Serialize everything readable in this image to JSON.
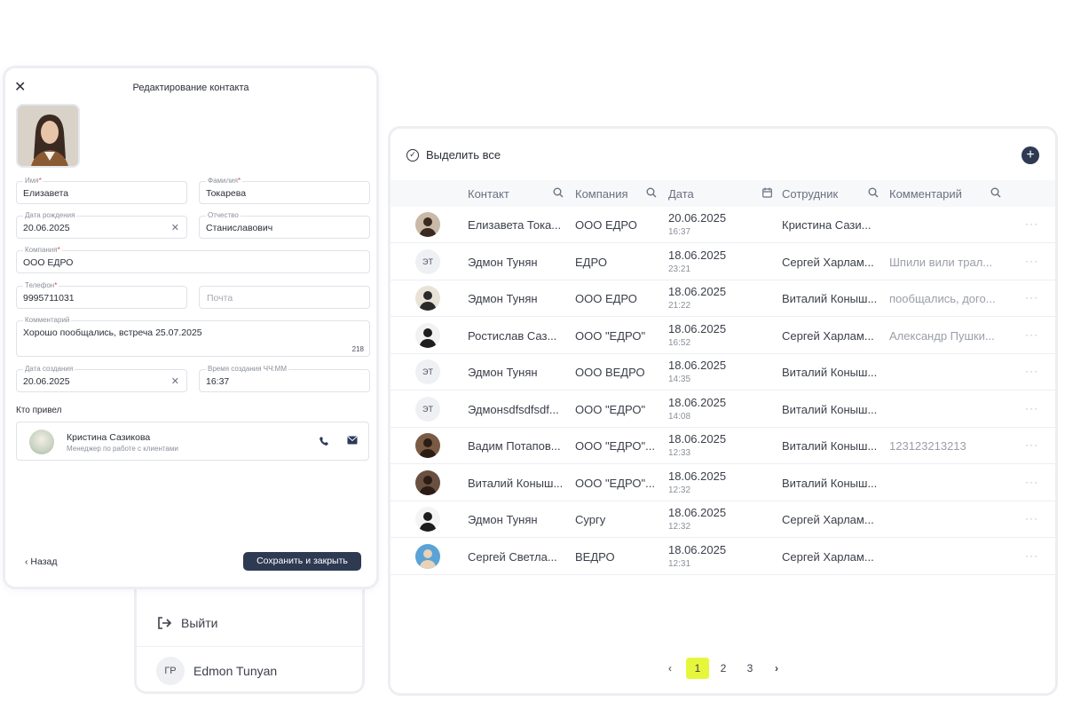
{
  "menu": {
    "logout_label": "Выйти",
    "user_initials": "ГР",
    "user_name": "Edmon Tunyan"
  },
  "modal": {
    "title": "Редактирование контакта",
    "close_icon": "close-icon",
    "fields": {
      "first_name": {
        "label": "Имя",
        "value": "Елизавета"
      },
      "last_name": {
        "label": "Фамилия",
        "value": "Токарева"
      },
      "birth_date": {
        "label": "Дата рождения",
        "value": "20.06.2025"
      },
      "patronymic": {
        "label": "Отчество",
        "value": "Станиславович"
      },
      "company": {
        "label": "Компания",
        "value": "ООО ЕДРО"
      },
      "phone": {
        "label": "Телефон",
        "value": "9995711031"
      },
      "email": {
        "placeholder": "Почта"
      },
      "comment": {
        "label": "Комментарий",
        "value": "Хорошо пообщались, встреча 25.07.2025",
        "counter": "218"
      },
      "created_date": {
        "label": "Дата создания",
        "value": "20.06.2025"
      },
      "created_time": {
        "label": "Время создания ЧЧ:ММ",
        "value": "16:37"
      }
    },
    "referrer": {
      "section_label": "Кто привел",
      "name": "Кристина Сазикова",
      "role": "Менеджер по работе с клиентами"
    },
    "back_label": "Назад",
    "save_label": "Сохранить и закрыть"
  },
  "table": {
    "select_all_label": "Выделить все",
    "columns": [
      "Контакт",
      "Компания",
      "Дата",
      "Сотрудник",
      "Комментарий"
    ],
    "rows": [
      {
        "avatar": "photo",
        "initials": "",
        "contact": "Елизавета Тока...",
        "company": "ООО ЕДРО",
        "date": "20.06.2025",
        "time": "16:37",
        "employee": "Кристина Сази...",
        "comment": ""
      },
      {
        "avatar": "initials",
        "initials": "ЭТ",
        "contact": "Эдмон Тунян",
        "company": "ЕДРО",
        "date": "18.06.2025",
        "time": "23:21",
        "employee": "Сергей Харлам...",
        "comment": "Шпили вили трал..."
      },
      {
        "avatar": "photo",
        "initials": "",
        "contact": "Эдмон Тунян",
        "company": "ООО ЕДРО",
        "date": "18.06.2025",
        "time": "21:22",
        "employee": "Виталий Коныш...",
        "comment": "пообщались, дого..."
      },
      {
        "avatar": "photo",
        "initials": "",
        "contact": "Ростислав Саз...",
        "company": "ООО \"ЕДРО\"",
        "date": "18.06.2025",
        "time": "16:52",
        "employee": "Сергей Харлам...",
        "comment": "Александр Пушки..."
      },
      {
        "avatar": "initials",
        "initials": "ЭТ",
        "contact": "Эдмон Тунян",
        "company": "ООО ВЕДРО",
        "date": "18.06.2025",
        "time": "14:35",
        "employee": "Виталий Коныш...",
        "comment": ""
      },
      {
        "avatar": "initials",
        "initials": "ЭТ",
        "contact": "Эдмонsdfsdfsdf...",
        "company": "ООО \"ЕДРО\"",
        "date": "18.06.2025",
        "time": "14:08",
        "employee": "Виталий Коныш...",
        "comment": ""
      },
      {
        "avatar": "photo",
        "initials": "",
        "contact": "Вадим Потапов...",
        "company": "ООО \"ЕДРО\"...",
        "date": "18.06.2025",
        "time": "12:33",
        "employee": "Виталий Коныш...",
        "comment": "123123213213"
      },
      {
        "avatar": "photo",
        "initials": "",
        "contact": "Виталий Коныш...",
        "company": "ООО \"ЕДРО\"...",
        "date": "18.06.2025",
        "time": "12:32",
        "employee": "Виталий Коныш...",
        "comment": ""
      },
      {
        "avatar": "photo",
        "initials": "",
        "contact": "Эдмон Тунян",
        "company": "Сургу",
        "date": "18.06.2025",
        "time": "12:32",
        "employee": "Сергей Харлам...",
        "comment": ""
      },
      {
        "avatar": "photo",
        "initials": "",
        "contact": "Сергей Светла...",
        "company": "ВЕДРО",
        "date": "18.06.2025",
        "time": "12:31",
        "employee": "Сергей Харлам...",
        "comment": ""
      }
    ],
    "pagination": {
      "pages": [
        "1",
        "2",
        "3"
      ],
      "current": "1"
    }
  },
  "colors": {
    "accent": "#2e3a52",
    "page_highlight": "#e6f73b",
    "border": "#eceef2"
  }
}
